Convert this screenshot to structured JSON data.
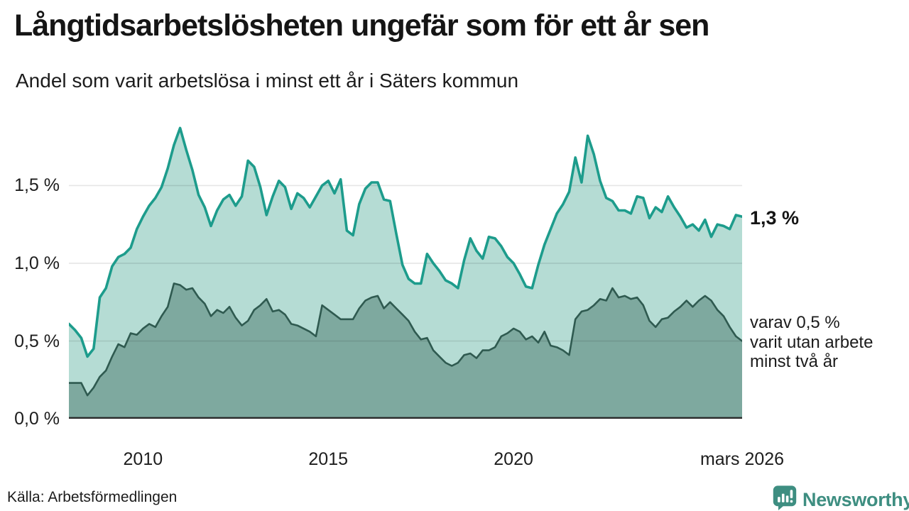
{
  "header": {
    "title": "Långtidsarbetslösheten ungefär som för ett år sen",
    "subtitle": "Andel som varit arbetslösa i minst ett år i Säters kommun"
  },
  "annotations": {
    "latest_total": "1,3 %",
    "secondary": [
      "varav 0,5 %",
      "varit utan arbete",
      "minst två år"
    ]
  },
  "footer": {
    "source": "Källa: Arbetsförmedlingen",
    "brand": "Newsworthy"
  },
  "colors": {
    "total_line": "#1d9c8c",
    "total_fill": "#b5dcd4",
    "two_year_line": "#2f5a50",
    "two_year_fill": "#7ea99f",
    "gridline": "rgba(0,0,0,0.10)",
    "baseline": "#2b2b2b",
    "brand_teal": "#3e8e81",
    "text": "#1c1c1c"
  },
  "chart_data": {
    "type": "area",
    "title": "Långtidsarbetslösheten ungefär som för ett år sen",
    "subtitle": "Andel som varit arbetslösa i minst ett år i Säters kommun",
    "unit": "%",
    "x_start": 2008.0,
    "x_end": 2026.17,
    "ylim": [
      0,
      1.963
    ],
    "grid": true,
    "y_ticks": [
      {
        "label": "0,0 %",
        "value": 0.0
      },
      {
        "label": "0,5 %",
        "value": 0.5
      },
      {
        "label": "1,0 %",
        "value": 1.0
      },
      {
        "label": "1,5 %",
        "value": 1.5
      }
    ],
    "x_ticks": [
      {
        "label": "2010",
        "value": 2010
      },
      {
        "label": "2015",
        "value": 2015
      },
      {
        "label": "2020",
        "value": 2020
      },
      {
        "label": "mars 2026",
        "value": 2026.17
      }
    ],
    "series": [
      {
        "name": "Arbetslösa minst ett år",
        "latest_value": 1.3,
        "values": [
          0.61,
          0.57,
          0.52,
          0.4,
          0.45,
          0.78,
          0.84,
          0.98,
          1.04,
          1.06,
          1.1,
          1.22,
          1.3,
          1.37,
          1.42,
          1.49,
          1.61,
          1.76,
          1.87,
          1.73,
          1.6,
          1.44,
          1.36,
          1.24,
          1.34,
          1.41,
          1.44,
          1.37,
          1.43,
          1.66,
          1.62,
          1.49,
          1.31,
          1.43,
          1.53,
          1.49,
          1.35,
          1.45,
          1.42,
          1.36,
          1.43,
          1.5,
          1.53,
          1.45,
          1.54,
          1.21,
          1.18,
          1.38,
          1.48,
          1.52,
          1.52,
          1.41,
          1.4,
          1.19,
          0.99,
          0.9,
          0.87,
          0.87,
          1.06,
          1.0,
          0.95,
          0.89,
          0.87,
          0.84,
          1.02,
          1.16,
          1.08,
          1.03,
          1.17,
          1.16,
          1.11,
          1.04,
          1.0,
          0.93,
          0.85,
          0.84,
          0.99,
          1.12,
          1.22,
          1.32,
          1.38,
          1.46,
          1.68,
          1.52,
          1.82,
          1.7,
          1.53,
          1.42,
          1.4,
          1.34,
          1.34,
          1.32,
          1.43,
          1.42,
          1.29,
          1.36,
          1.33,
          1.43,
          1.36,
          1.3,
          1.23,
          1.25,
          1.21,
          1.28,
          1.17,
          1.25,
          1.24,
          1.22,
          1.31,
          1.3
        ]
      },
      {
        "name": "varav utan arbete minst två år",
        "latest_value": 0.5,
        "values": [
          0.23,
          0.23,
          0.23,
          0.15,
          0.2,
          0.27,
          0.31,
          0.4,
          0.48,
          0.46,
          0.55,
          0.54,
          0.58,
          0.61,
          0.59,
          0.66,
          0.72,
          0.87,
          0.86,
          0.83,
          0.84,
          0.78,
          0.74,
          0.66,
          0.7,
          0.68,
          0.72,
          0.65,
          0.6,
          0.63,
          0.7,
          0.73,
          0.77,
          0.69,
          0.7,
          0.67,
          0.61,
          0.6,
          0.58,
          0.56,
          0.53,
          0.73,
          0.7,
          0.67,
          0.64,
          0.64,
          0.64,
          0.71,
          0.76,
          0.78,
          0.79,
          0.71,
          0.75,
          0.71,
          0.67,
          0.63,
          0.56,
          0.51,
          0.52,
          0.44,
          0.4,
          0.36,
          0.34,
          0.36,
          0.41,
          0.42,
          0.39,
          0.44,
          0.44,
          0.46,
          0.53,
          0.55,
          0.58,
          0.56,
          0.51,
          0.53,
          0.49,
          0.56,
          0.47,
          0.46,
          0.44,
          0.41,
          0.64,
          0.69,
          0.7,
          0.73,
          0.77,
          0.76,
          0.84,
          0.78,
          0.79,
          0.77,
          0.78,
          0.73,
          0.63,
          0.59,
          0.64,
          0.65,
          0.69,
          0.72,
          0.76,
          0.72,
          0.76,
          0.79,
          0.76,
          0.7,
          0.66,
          0.59,
          0.53,
          0.5
        ]
      }
    ]
  }
}
